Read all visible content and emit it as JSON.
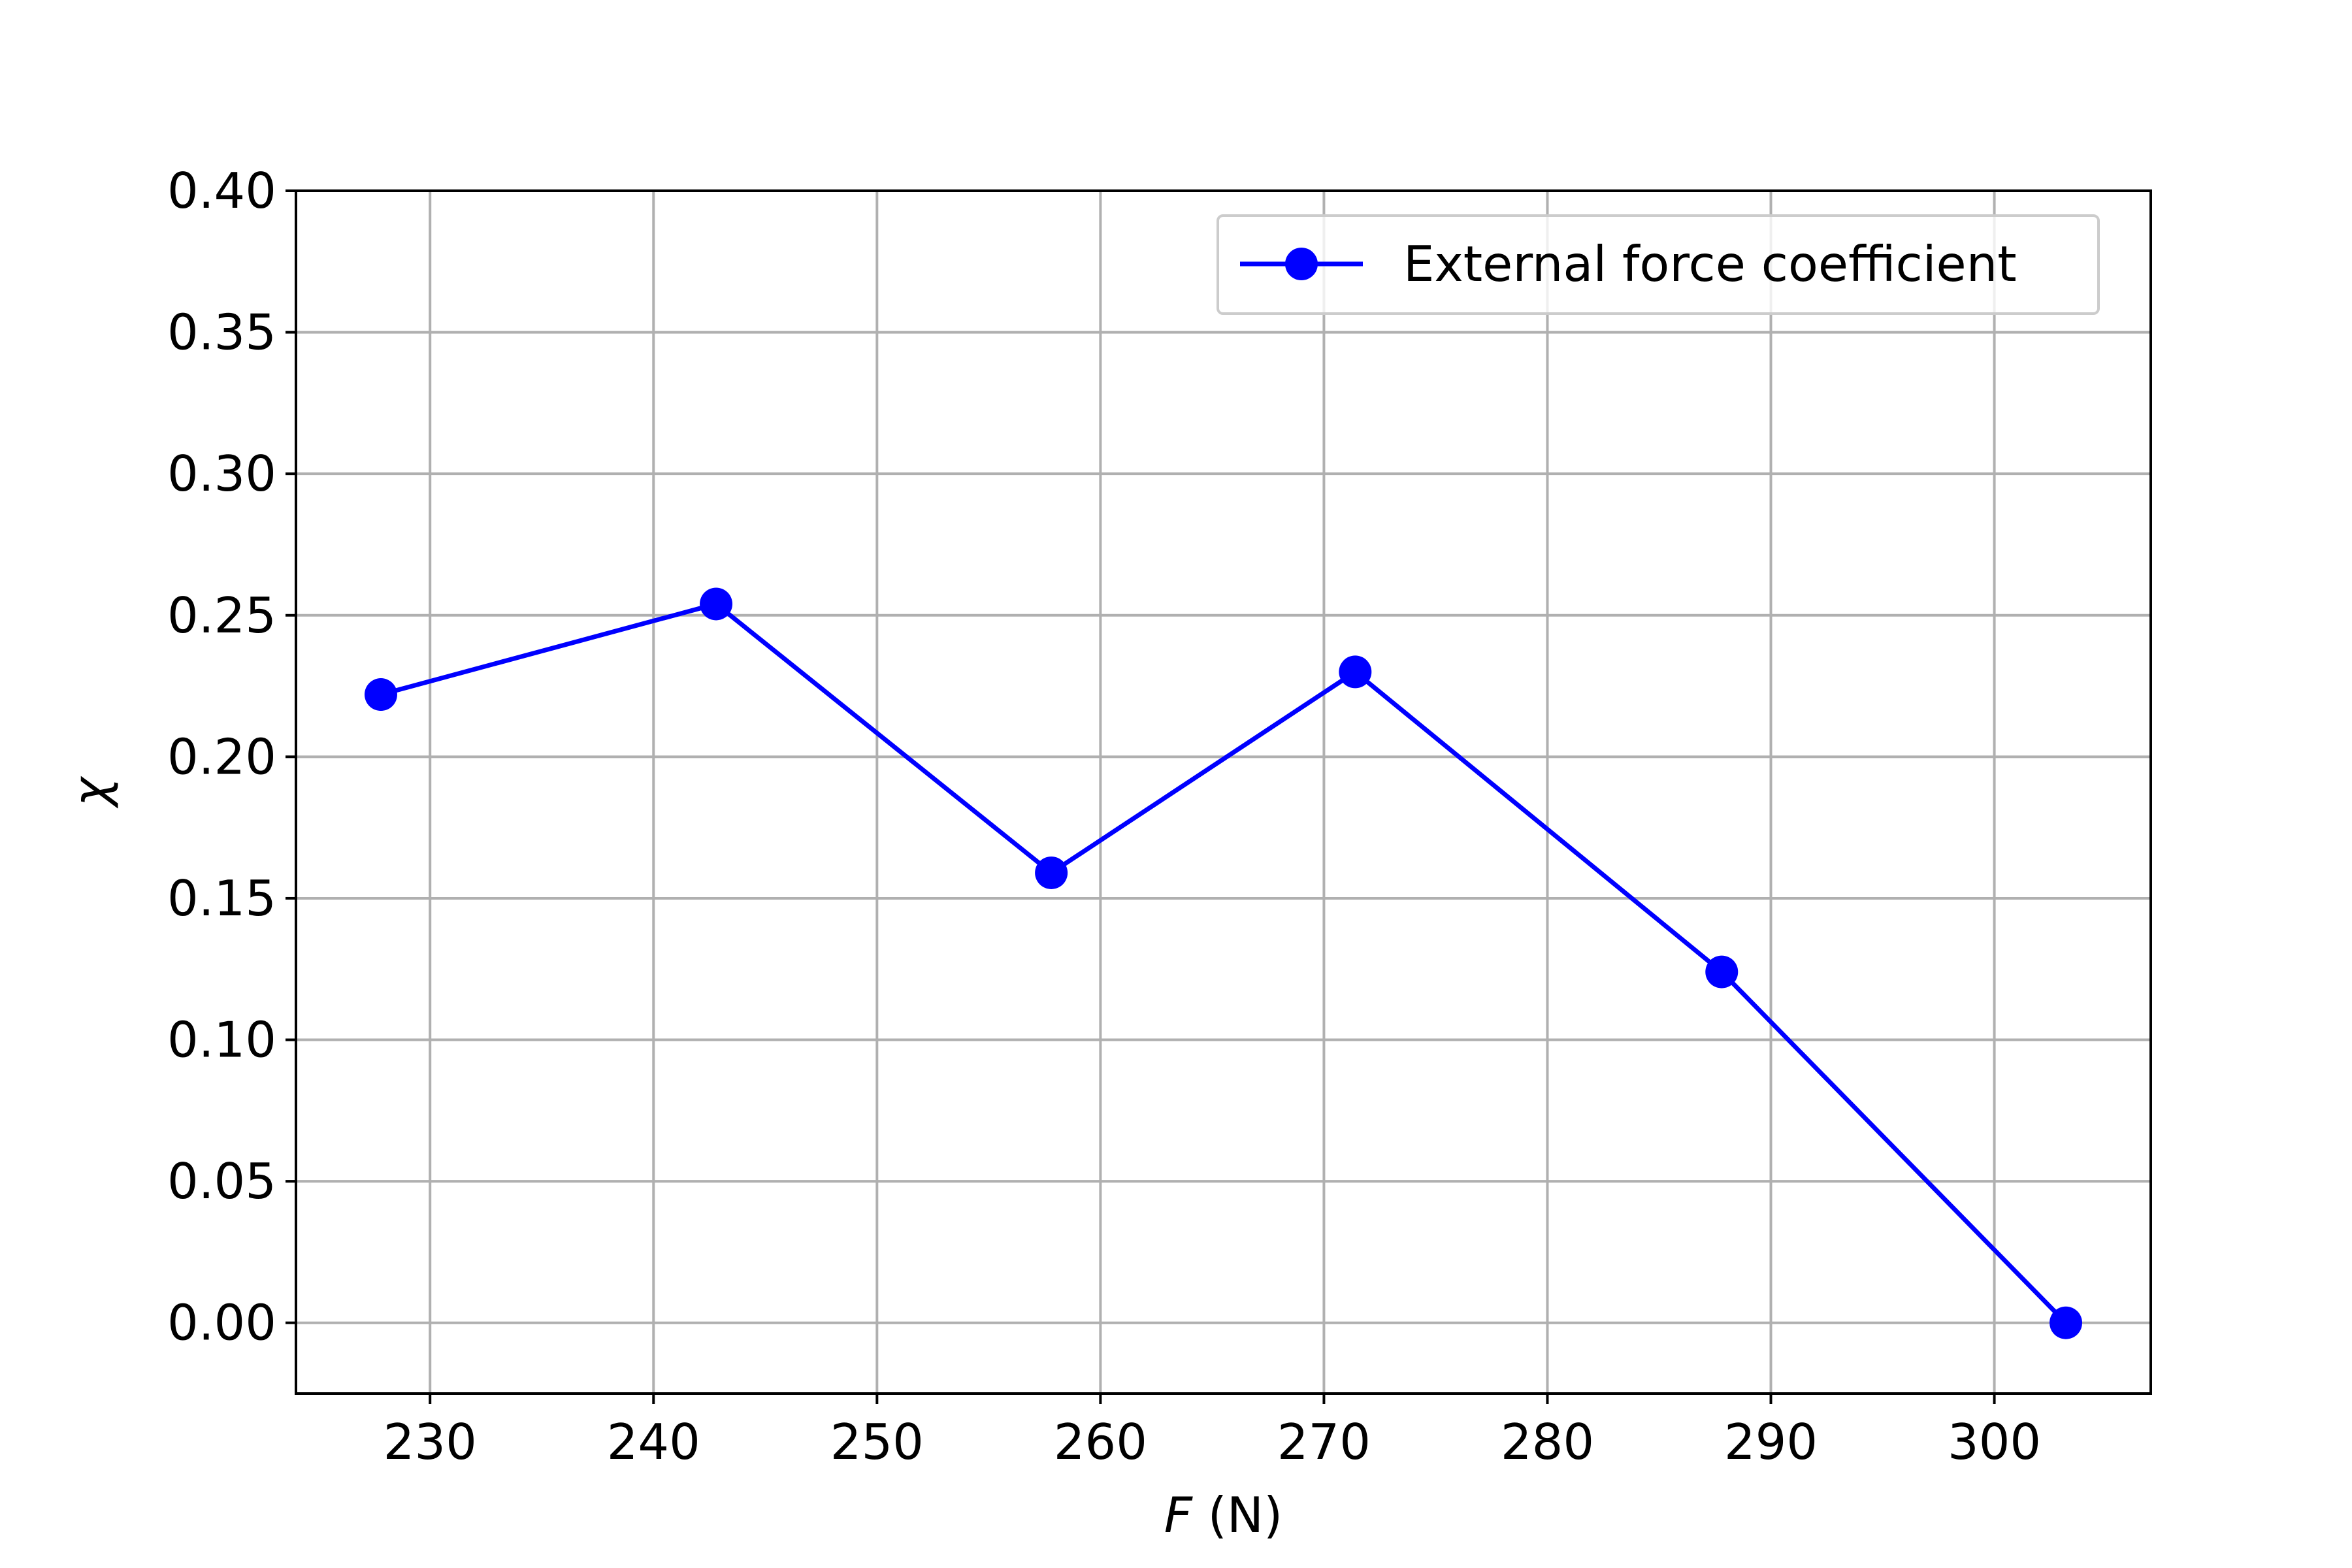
{
  "chart_data": {
    "type": "line",
    "xlabel_symbol": "F",
    "xlabel_unit": " (N)",
    "ylabel": "χ",
    "xlim": [
      224,
      307
    ],
    "ylim": [
      -0.025,
      0.4
    ],
    "xticks": [
      230,
      240,
      250,
      260,
      270,
      280,
      290,
      300
    ],
    "yticks": [
      0.0,
      0.05,
      0.1,
      0.15,
      0.2,
      0.25,
      0.3,
      0.35,
      0.4
    ],
    "ytick_labels": [
      "0.00",
      "0.05",
      "0.10",
      "0.15",
      "0.20",
      "0.25",
      "0.30",
      "0.35",
      "0.40"
    ],
    "grid": true,
    "legend_position": "top-right",
    "series": [
      {
        "name": "External force coefficient",
        "color": "#0000ff",
        "marker": "circle",
        "x": [
          227.8,
          242.8,
          257.8,
          271.4,
          287.8,
          303.2
        ],
        "y": [
          0.222,
          0.254,
          0.159,
          0.23,
          0.124,
          0.0
        ]
      }
    ]
  }
}
